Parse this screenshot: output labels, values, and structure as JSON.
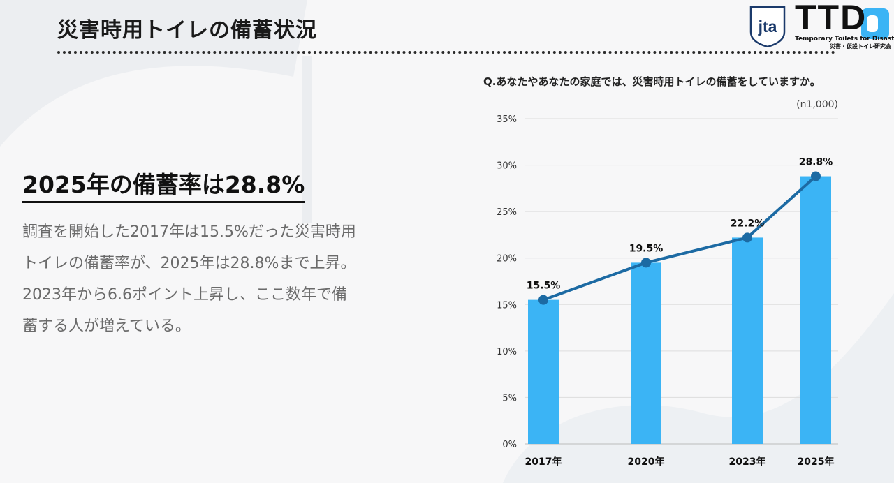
{
  "header": {
    "title": "災害時用トイレの備蓄状況",
    "logo_jta": "jta",
    "logo_ttd": "TTD",
    "logo_sub_en": "Temporary Toilets for Disaster",
    "logo_sub_jp": "災害・仮設トイレ研究会"
  },
  "main": {
    "headline": "2025年の備蓄率は28.8%",
    "body_lines": [
      "調査を開始した2017年は15.5%だった災害時用",
      "トイレの備蓄率が、2025年は28.8%まで上昇。",
      "2023年から6.6ポイント上昇し、ここ数年で備",
      "蓄する人が増えている。"
    ]
  },
  "chart": {
    "question": "Q.あなたやあなたの家庭では、災害時用トイレの備蓄をしていますか。",
    "sample": "(n1,000)"
  },
  "colors": {
    "bar": "#3bb4f5",
    "line": "#1c6aa3",
    "grid": "#dddddd"
  },
  "chart_data": {
    "type": "bar",
    "categories": [
      "2017年",
      "2020年",
      "2023年",
      "2025年"
    ],
    "x": [
      2017,
      2020,
      2023,
      2025
    ],
    "values": [
      15.5,
      19.5,
      22.2,
      28.8
    ],
    "data_labels": [
      "15.5%",
      "19.5%",
      "22.2%",
      "28.8%"
    ],
    "line_overlay": true,
    "ylim": [
      0,
      35
    ],
    "yticks": [
      "0%",
      "5%",
      "10%",
      "15%",
      "20%",
      "25%",
      "30%",
      "35%"
    ],
    "grid": true
  }
}
